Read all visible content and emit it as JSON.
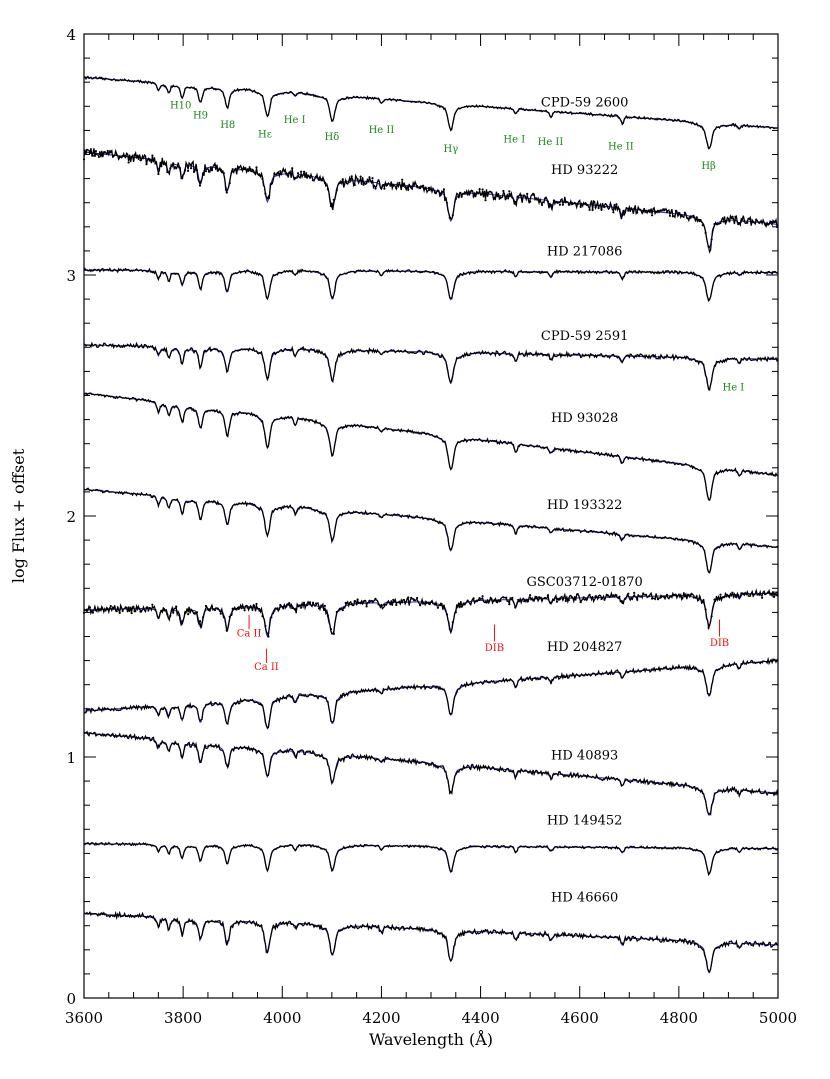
{
  "chart_data": {
    "type": "line",
    "title": "",
    "xlabel": "Wavelength (Å)",
    "ylabel": "log Flux + offset",
    "xlim": [
      3600,
      5000
    ],
    "ylim": [
      0,
      4
    ],
    "x_ticks": [
      "3600",
      "3800",
      "4000",
      "4200",
      "4400",
      "4600",
      "4800",
      "5000"
    ],
    "y_ticks": [
      "0",
      "1",
      "2",
      "3",
      "4"
    ],
    "grid": false,
    "colors": {
      "observed": "#000000",
      "model": "#2222cc",
      "hydrogen_helium_ids": "#1a8a1a",
      "interstellar_ids": "#ee1111"
    },
    "lines": [
      {
        "name": "Hε",
        "wavelength": 3970
      },
      {
        "name": "Hδ",
        "wavelength": 4101
      },
      {
        "name": "Hγ",
        "wavelength": 4340
      },
      {
        "name": "Hβ",
        "wavelength": 4861
      },
      {
        "name": "H8",
        "wavelength": 3889
      },
      {
        "name": "H9",
        "wavelength": 3835
      },
      {
        "name": "H10",
        "wavelength": 3798
      },
      {
        "name": "He II",
        "wavelength": 4200
      },
      {
        "name": "He II",
        "wavelength": 4542
      },
      {
        "name": "He II",
        "wavelength": 4686
      },
      {
        "name": "He I",
        "wavelength": 4026
      },
      {
        "name": "He I",
        "wavelength": 4471
      },
      {
        "name": "He I",
        "wavelength": 4922
      }
    ],
    "series": [
      {
        "name": "CPD-59 2600",
        "y_start": 3.82,
        "y_end": 3.61,
        "label_x": 4610,
        "label_y": 3.7,
        "noise": 0.004,
        "scale": 1.0,
        "heii": 1.0
      },
      {
        "name": "HD 93222",
        "y_start": 3.51,
        "y_end": 3.21,
        "label_x": 4610,
        "label_y": 3.42,
        "noise": 0.016,
        "scale": 1.2,
        "heii": 1.0
      },
      {
        "name": "HD 217086",
        "y_start": 3.02,
        "y_end": 3.01,
        "label_x": 4610,
        "label_y": 3.08,
        "noise": 0.005,
        "scale": 1.1,
        "heii": 1.0
      },
      {
        "name": "CPD-59 2591",
        "y_start": 2.71,
        "y_end": 2.65,
        "label_x": 4610,
        "label_y": 2.73,
        "noise": 0.007,
        "scale": 1.2,
        "heii": 0.7
      },
      {
        "name": "HD 93028",
        "y_start": 2.51,
        "y_end": 2.17,
        "label_x": 4610,
        "label_y": 2.39,
        "noise": 0.005,
        "scale": 1.3,
        "heii": 0.7
      },
      {
        "name": "HD 193322",
        "y_start": 2.11,
        "y_end": 1.87,
        "label_x": 4610,
        "label_y": 2.03,
        "noise": 0.005,
        "scale": 1.2,
        "heii": 0.7
      },
      {
        "name": "GSC03712-01870",
        "y_start": 1.61,
        "y_end": 1.68,
        "label_x": 4610,
        "label_y": 1.71,
        "noise": 0.012,
        "scale": 1.2,
        "heii": 0.8
      },
      {
        "name": "HD 204827",
        "y_start": 1.19,
        "y_end": 1.4,
        "label_x": 4610,
        "label_y": 1.44,
        "noise": 0.007,
        "scale": 1.2,
        "heii": 0.8
      },
      {
        "name": "HD 40893",
        "y_start": 1.1,
        "y_end": 0.85,
        "label_x": 4610,
        "label_y": 0.99,
        "noise": 0.008,
        "scale": 1.1,
        "heii": 0.8
      },
      {
        "name": "HD 149452",
        "y_start": 0.64,
        "y_end": 0.62,
        "label_x": 4610,
        "label_y": 0.72,
        "noise": 0.004,
        "scale": 1.0,
        "heii": 0.8
      },
      {
        "name": "HD 46660",
        "y_start": 0.35,
        "y_end": 0.22,
        "label_x": 4610,
        "label_y": 0.4,
        "noise": 0.008,
        "scale": 1.2,
        "heii": 0.9
      }
    ],
    "green_annotations": [
      {
        "text": "H10",
        "x": 3795,
        "y": 3.69
      },
      {
        "text": "H9",
        "x": 3835,
        "y": 3.65
      },
      {
        "text": "H8",
        "x": 3890,
        "y": 3.61
      },
      {
        "text": "Hε",
        "x": 3965,
        "y": 3.57
      },
      {
        "text": "He I",
        "x": 4025,
        "y": 3.63
      },
      {
        "text": "Hδ",
        "x": 4100,
        "y": 3.56
      },
      {
        "text": "He II",
        "x": 4200,
        "y": 3.59
      },
      {
        "text": "Hγ",
        "x": 4340,
        "y": 3.51
      },
      {
        "text": "He I",
        "x": 4468,
        "y": 3.55
      },
      {
        "text": "He II",
        "x": 4541,
        "y": 3.54
      },
      {
        "text": "He II",
        "x": 4683,
        "y": 3.52
      },
      {
        "text": "Hβ",
        "x": 4860,
        "y": 3.44
      },
      {
        "text": "He I",
        "x": 4910,
        "y": 2.52
      }
    ],
    "red_annotations": [
      {
        "text": "Ca II",
        "x": 3933,
        "y": 1.5,
        "tick_top": 1.59,
        "tick_bottom": 1.53
      },
      {
        "text": "Ca II",
        "x": 3968,
        "y": 1.36,
        "tick_top": 1.45,
        "tick_bottom": 1.39
      },
      {
        "text": "DIB",
        "x": 4428,
        "y": 1.44,
        "tick_top": 1.55,
        "tick_bottom": 1.48
      },
      {
        "text": "DIB",
        "x": 4882,
        "y": 1.46,
        "tick_top": 1.57,
        "tick_bottom": 1.5
      }
    ]
  }
}
